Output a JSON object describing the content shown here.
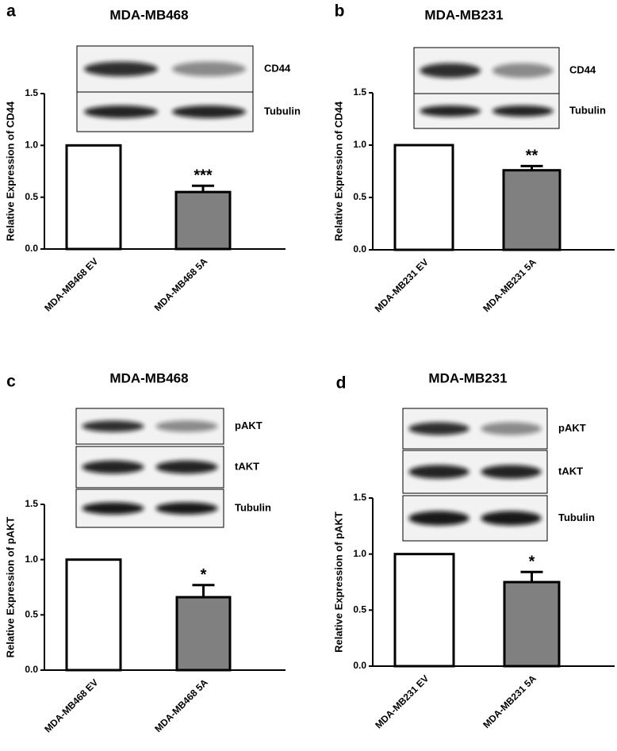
{
  "chart_data": [
    {
      "type": "bar",
      "panel": "a",
      "title": "MDA-MB468",
      "y_label": "Relative Expression of CD44",
      "categories": [
        "MDA-MB468 EV",
        "MDA-MB468 5A"
      ],
      "values": [
        1.0,
        0.55
      ],
      "errors": [
        0,
        0.06
      ],
      "colors": [
        "#ffffff",
        "#808080"
      ],
      "annotations": [
        null,
        "***"
      ],
      "ylim": [
        0,
        1.5
      ],
      "yticks": [
        {
          "value": 0,
          "label": "0.0"
        },
        {
          "value": 0.5,
          "label": "0.5"
        },
        {
          "value": 1,
          "label": "1.0"
        },
        {
          "value": 1.5,
          "label": "1.5"
        }
      ],
      "blot_labels": [
        "CD44",
        "Tubulin"
      ]
    },
    {
      "type": "bar",
      "panel": "b",
      "title": "MDA-MB231",
      "y_label": "Relative Expression of CD44",
      "categories": [
        "MDA-MB231 EV",
        "MDA-MB231 5A"
      ],
      "values": [
        1.0,
        0.76
      ],
      "errors": [
        0,
        0.04
      ],
      "colors": [
        "#ffffff",
        "#808080"
      ],
      "annotations": [
        null,
        "**"
      ],
      "ylim": [
        0,
        1.5
      ],
      "yticks": [
        {
          "value": 0,
          "label": "0.0"
        },
        {
          "value": 0.5,
          "label": "0.5"
        },
        {
          "value": 1,
          "label": "1.0"
        },
        {
          "value": 1.5,
          "label": "1.5"
        }
      ],
      "blot_labels": [
        "CD44",
        "Tubulin"
      ]
    },
    {
      "type": "bar",
      "panel": "c",
      "title": "MDA-MB468",
      "y_label": "Relative Expression of pAKT",
      "categories": [
        "MDA-MB468 EV",
        "MDA-MB468 5A"
      ],
      "values": [
        1.0,
        0.66
      ],
      "errors": [
        0,
        0.11
      ],
      "colors": [
        "#ffffff",
        "#808080"
      ],
      "annotations": [
        null,
        "*"
      ],
      "ylim": [
        0,
        1.5
      ],
      "yticks": [
        {
          "value": 0,
          "label": "0.0"
        },
        {
          "value": 0.5,
          "label": "0.5"
        },
        {
          "value": 1,
          "label": "1.0"
        },
        {
          "value": 1.5,
          "label": "1.5"
        }
      ],
      "blot_labels": [
        "pAKT",
        "tAKT",
        "Tubulin"
      ]
    },
    {
      "type": "bar",
      "panel": "d",
      "title": "MDA-MB231",
      "y_label": "Relative Expression of pAKT",
      "categories": [
        "MDA-MB231 EV",
        "MDA-MB231 5A"
      ],
      "values": [
        1.0,
        0.75
      ],
      "errors": [
        0,
        0.09
      ],
      "colors": [
        "#ffffff",
        "#808080"
      ],
      "annotations": [
        null,
        "*"
      ],
      "ylim": [
        0,
        1.5
      ],
      "yticks": [
        {
          "value": 0,
          "label": "0.0"
        },
        {
          "value": 0.5,
          "label": "0.5"
        },
        {
          "value": 1,
          "label": "1.0"
        },
        {
          "value": 1.5,
          "label": "1.5"
        }
      ],
      "blot_labels": [
        "pAKT",
        "tAKT",
        "Tubulin"
      ]
    }
  ]
}
